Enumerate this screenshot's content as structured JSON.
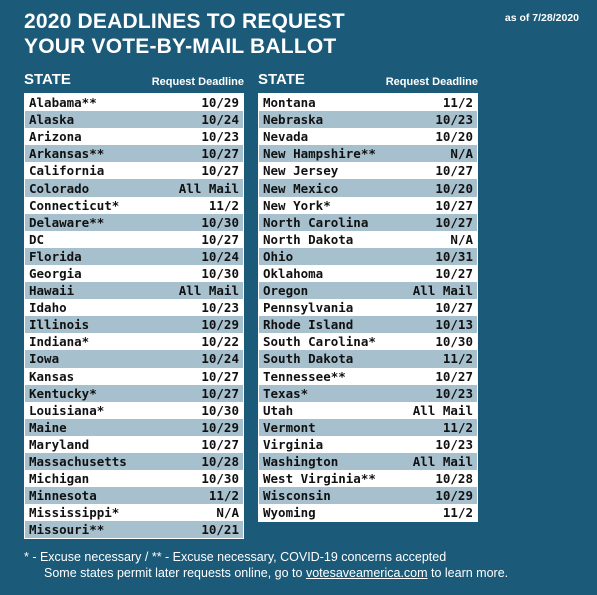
{
  "header": {
    "title_line1": "2020 DEADLINES TO REQUEST",
    "title_line2": "YOUR VOTE-BY-MAIL BALLOT",
    "as_of": "as of 7/28/2020"
  },
  "columns": {
    "state_label": "STATE",
    "deadline_label": "Request Deadline"
  },
  "left_rows": [
    {
      "state": "Alabama**",
      "deadline": "10/29"
    },
    {
      "state": "Alaska",
      "deadline": "10/24"
    },
    {
      "state": "Arizona",
      "deadline": "10/23"
    },
    {
      "state": "Arkansas**",
      "deadline": "10/27"
    },
    {
      "state": "California",
      "deadline": "10/27"
    },
    {
      "state": "Colorado",
      "deadline": "All Mail"
    },
    {
      "state": "Connecticut*",
      "deadline": "11/2"
    },
    {
      "state": "Delaware**",
      "deadline": "10/30"
    },
    {
      "state": "DC",
      "deadline": "10/27"
    },
    {
      "state": "Florida",
      "deadline": "10/24"
    },
    {
      "state": "Georgia",
      "deadline": "10/30"
    },
    {
      "state": "Hawaii",
      "deadline": "All Mail"
    },
    {
      "state": "Idaho",
      "deadline": "10/23"
    },
    {
      "state": "Illinois",
      "deadline": "10/29"
    },
    {
      "state": "Indiana*",
      "deadline": "10/22"
    },
    {
      "state": "Iowa",
      "deadline": "10/24"
    },
    {
      "state": "Kansas",
      "deadline": "10/27"
    },
    {
      "state": "Kentucky*",
      "deadline": "10/27"
    },
    {
      "state": "Louisiana*",
      "deadline": "10/30"
    },
    {
      "state": "Maine",
      "deadline": "10/29"
    },
    {
      "state": "Maryland",
      "deadline": "10/27"
    },
    {
      "state": "Massachusetts",
      "deadline": "10/28"
    },
    {
      "state": "Michigan",
      "deadline": "10/30"
    },
    {
      "state": "Minnesota",
      "deadline": "11/2"
    },
    {
      "state": "Mississippi*",
      "deadline": "N/A"
    },
    {
      "state": "Missouri**",
      "deadline": "10/21"
    }
  ],
  "right_rows": [
    {
      "state": "Montana",
      "deadline": "11/2"
    },
    {
      "state": "Nebraska",
      "deadline": "10/23"
    },
    {
      "state": "Nevada",
      "deadline": "10/20"
    },
    {
      "state": "New Hampshire**",
      "deadline": "N/A"
    },
    {
      "state": "New Jersey",
      "deadline": "10/27"
    },
    {
      "state": "New Mexico",
      "deadline": "10/20"
    },
    {
      "state": "New York*",
      "deadline": "10/27"
    },
    {
      "state": "North Carolina",
      "deadline": "10/27"
    },
    {
      "state": "North Dakota",
      "deadline": "N/A"
    },
    {
      "state": "Ohio",
      "deadline": "10/31"
    },
    {
      "state": "Oklahoma",
      "deadline": "10/27"
    },
    {
      "state": "Oregon",
      "deadline": "All Mail"
    },
    {
      "state": "Pennsylvania",
      "deadline": "10/27"
    },
    {
      "state": "Rhode Island",
      "deadline": "10/13"
    },
    {
      "state": "South Carolina*",
      "deadline": "10/30"
    },
    {
      "state": "South Dakota",
      "deadline": "11/2"
    },
    {
      "state": "Tennessee**",
      "deadline": "10/27"
    },
    {
      "state": "Texas*",
      "deadline": "10/23"
    },
    {
      "state": "Utah",
      "deadline": "All Mail"
    },
    {
      "state": "Vermont",
      "deadline": "11/2"
    },
    {
      "state": "Virginia",
      "deadline": "10/23"
    },
    {
      "state": "Washington",
      "deadline": "All Mail"
    },
    {
      "state": "West Virginia**",
      "deadline": "10/28"
    },
    {
      "state": "Wisconsin",
      "deadline": "10/29"
    },
    {
      "state": "Wyoming",
      "deadline": "11/2"
    }
  ],
  "footer": {
    "legend": "* - Excuse necessary /  ** - Excuse necessary, COVID-19 concerns accepted",
    "note_before": "Some states permit later requests online, go to ",
    "link_text": "votesaveamerica.com",
    "note_after": " to learn more."
  },
  "colors": {
    "background": "#1b5a78",
    "row_light": "#ffffff",
    "row_shaded": "#a7c0ce"
  }
}
